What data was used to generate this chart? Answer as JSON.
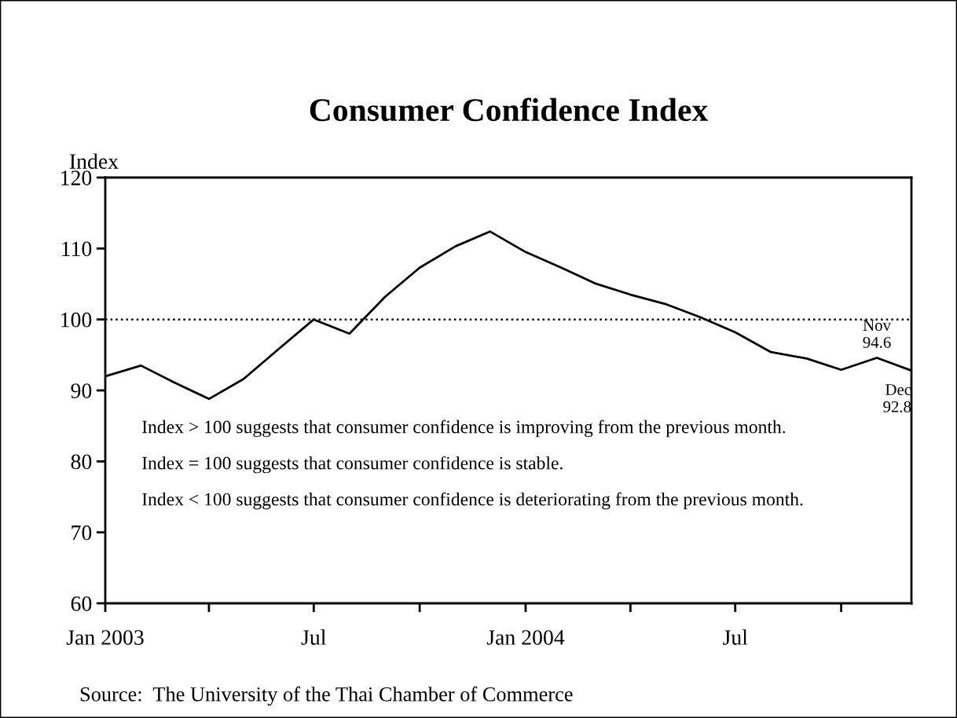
{
  "chart_data": {
    "type": "line",
    "title": "Consumer Confidence Index",
    "ylabel": "Index",
    "x": [
      "2003-01",
      "2003-02",
      "2003-03",
      "2003-04",
      "2003-05",
      "2003-06",
      "2003-07",
      "2003-08",
      "2003-09",
      "2003-10",
      "2003-11",
      "2003-12",
      "2004-01",
      "2004-02",
      "2004-03",
      "2004-04",
      "2004-05",
      "2004-06",
      "2004-07",
      "2004-08",
      "2004-09",
      "2004-10",
      "2004-11",
      "2004-12"
    ],
    "series": [
      {
        "color": "#000000",
        "values": [
          92.0,
          93.5,
          91.2,
          88.8,
          91.6,
          95.9,
          100.0,
          98.0,
          103.2,
          107.3,
          110.3,
          112.4,
          109.5,
          107.3,
          105.1,
          103.5,
          102.2,
          100.3,
          98.2,
          95.4,
          94.5,
          92.9,
          94.6,
          92.8
        ]
      }
    ],
    "xlim": [
      "2003-01",
      "2004-12"
    ],
    "xticks": [
      {
        "value": "2003-01",
        "label": "Jan 2003"
      },
      {
        "value": "2003-04",
        "label": null
      },
      {
        "value": "2003-07",
        "label": "Jul"
      },
      {
        "value": "2003-10",
        "label": null
      },
      {
        "value": "2004-01",
        "label": "Jan 2004"
      },
      {
        "value": "2004-04",
        "label": null
      },
      {
        "value": "2004-07",
        "label": "Jul"
      },
      {
        "value": "2004-10",
        "label": null
      }
    ],
    "ylim": [
      60,
      120
    ],
    "yticks": [
      60,
      70,
      80,
      90,
      100,
      110,
      120
    ],
    "grid": false,
    "marker": "none",
    "line_style": "solid",
    "ref_lines": [
      {
        "axis": "y",
        "value": 100,
        "label": null,
        "color": "#000000",
        "line_style": "dotted"
      }
    ],
    "annotations": [
      {
        "text": "Nov\n94.6",
        "x": "2004-11",
        "y": 94.6
      },
      {
        "text": "Dec\n92.8",
        "x": "2004-12",
        "y": 92.8
      },
      "Index > 100 suggests that consumer confidence is improving from the previous month.",
      "Index = 100 suggests that consumer confidence is stable.",
      "Index < 100 suggests that consumer confidence is deteriorating from the previous month.",
      "Source:  The University of the Thai Chamber of Commerce"
    ]
  }
}
